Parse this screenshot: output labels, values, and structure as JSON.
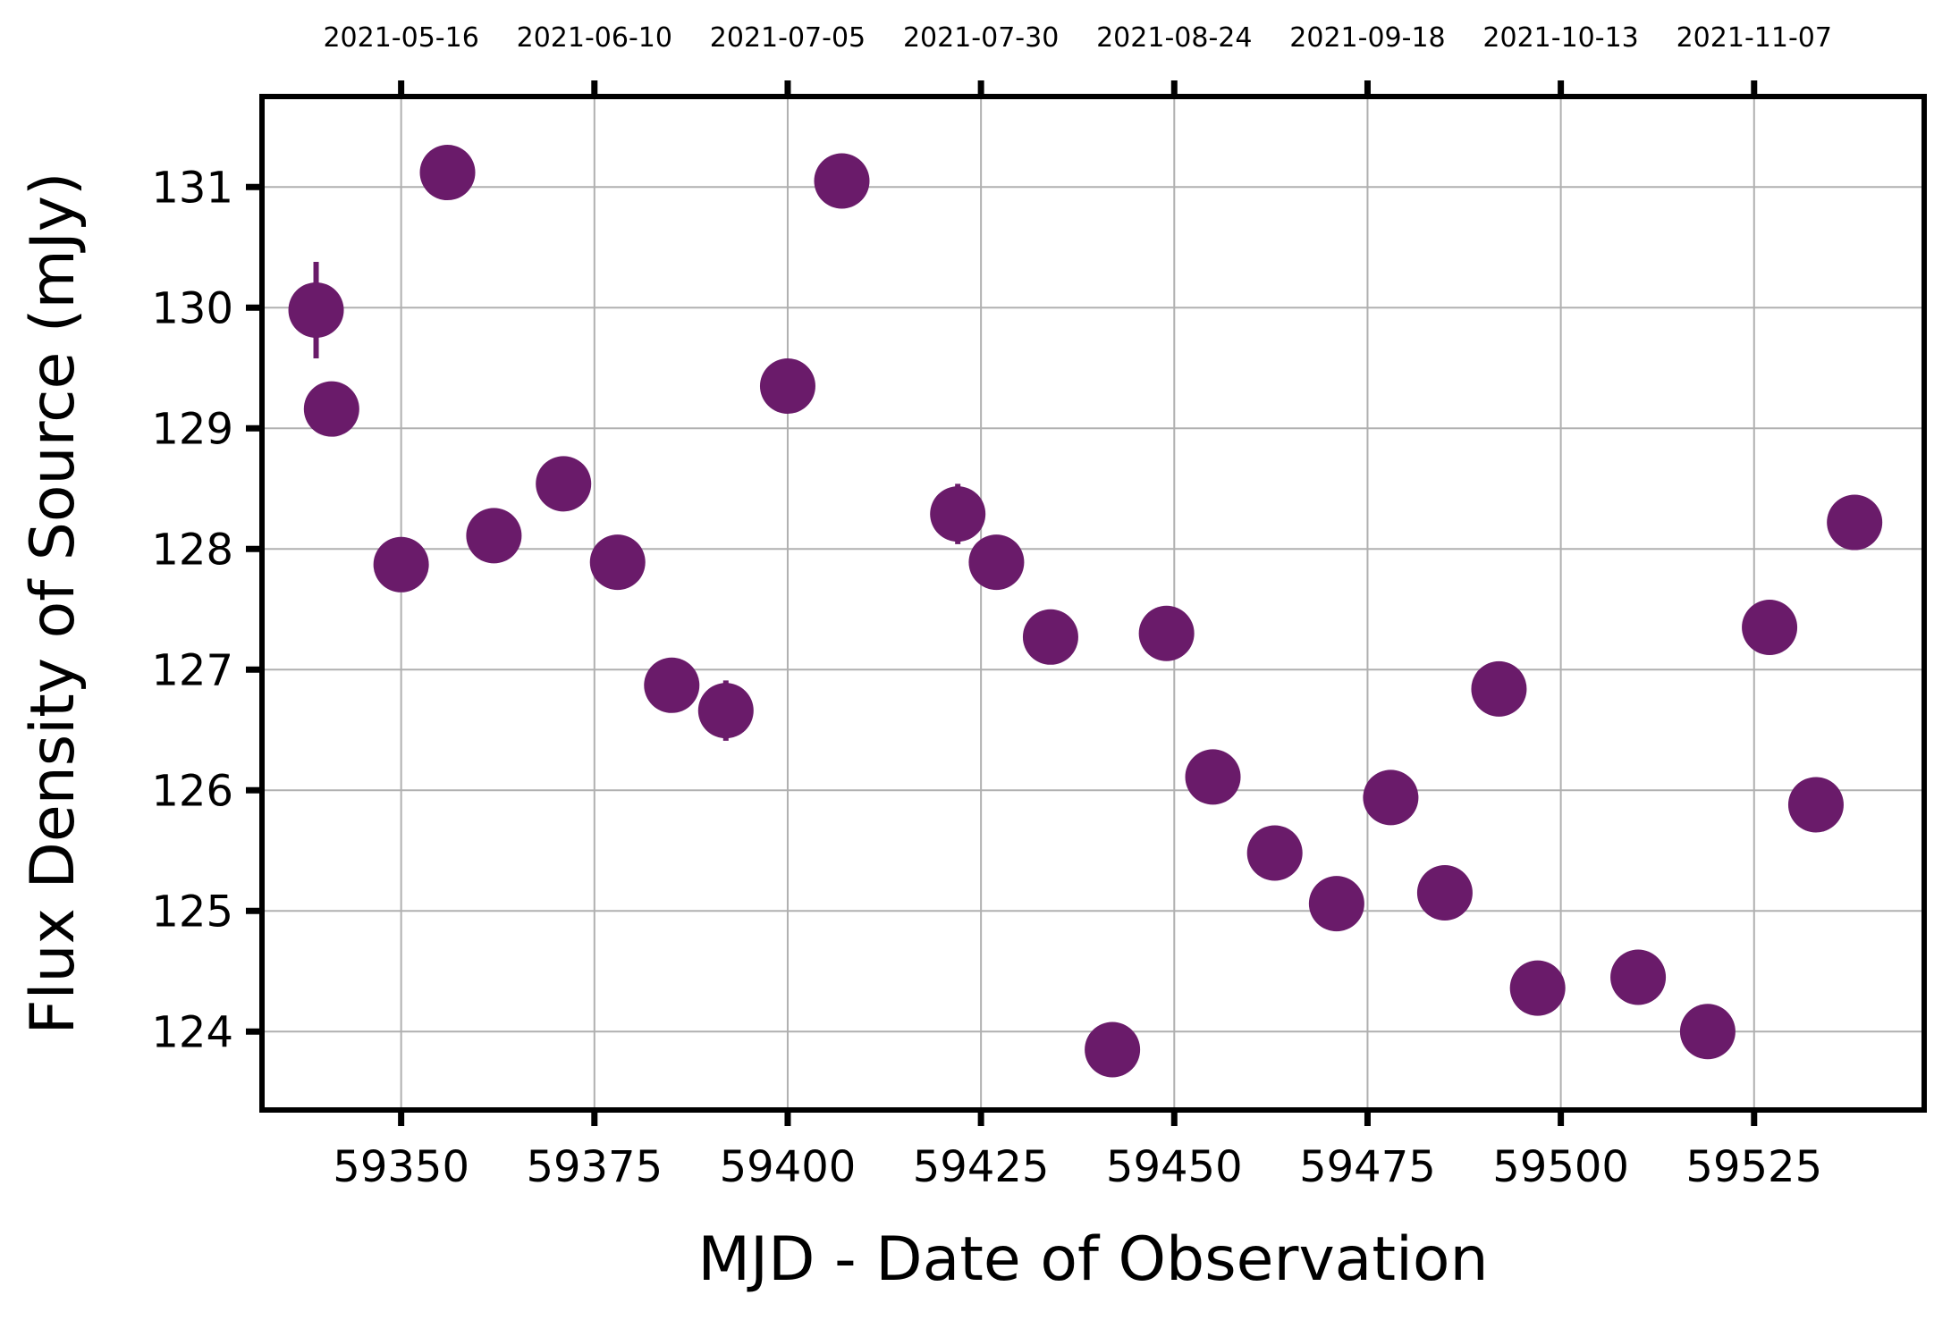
{
  "chart_data": {
    "type": "scatter",
    "title": "",
    "xlabel": "MJD - Date of Observation",
    "ylabel": "Flux Density of Source (mJy)",
    "xlim": [
      59332,
      59547
    ],
    "ylim": [
      123.35,
      131.75
    ],
    "x_ticks": [
      59350,
      59375,
      59400,
      59425,
      59450,
      59475,
      59500,
      59525
    ],
    "y_ticks": [
      124,
      125,
      126,
      127,
      128,
      129,
      130,
      131
    ],
    "top_axis": {
      "ticks": [
        59350,
        59375,
        59400,
        59425,
        59450,
        59475,
        59500,
        59525
      ],
      "labels": [
        "2021-05-16",
        "2021-06-10",
        "2021-07-05",
        "2021-07-30",
        "2021-08-24",
        "2021-09-18",
        "2021-10-13",
        "2021-11-07"
      ]
    },
    "grid": true,
    "marker_color": "#6a1b6a",
    "points": [
      {
        "x": 59339,
        "y": 129.98,
        "err": 0.4
      },
      {
        "x": 59341,
        "y": 129.16,
        "err": 0.0
      },
      {
        "x": 59350,
        "y": 127.87,
        "err": 0.2
      },
      {
        "x": 59356,
        "y": 131.12,
        "err": 0.0
      },
      {
        "x": 59362,
        "y": 128.11,
        "err": 0.0
      },
      {
        "x": 59371,
        "y": 128.54,
        "err": 0.0
      },
      {
        "x": 59378,
        "y": 127.89,
        "err": 0.0
      },
      {
        "x": 59385,
        "y": 126.87,
        "err": 0.0
      },
      {
        "x": 59392,
        "y": 126.66,
        "err": 0.25
      },
      {
        "x": 59400,
        "y": 129.35,
        "err": 0.0
      },
      {
        "x": 59407,
        "y": 131.05,
        "err": 0.0
      },
      {
        "x": 59422,
        "y": 128.29,
        "err": 0.25
      },
      {
        "x": 59427,
        "y": 127.89,
        "err": 0.0
      },
      {
        "x": 59434,
        "y": 127.27,
        "err": 0.0
      },
      {
        "x": 59442,
        "y": 123.85,
        "err": 0.0
      },
      {
        "x": 59449,
        "y": 127.3,
        "err": 0.0
      },
      {
        "x": 59455,
        "y": 126.11,
        "err": 0.0
      },
      {
        "x": 59463,
        "y": 125.48,
        "err": 0.0
      },
      {
        "x": 59471,
        "y": 125.06,
        "err": 0.0
      },
      {
        "x": 59478,
        "y": 125.94,
        "err": 0.0
      },
      {
        "x": 59485,
        "y": 125.15,
        "err": 0.0
      },
      {
        "x": 59492,
        "y": 126.84,
        "err": 0.0
      },
      {
        "x": 59497,
        "y": 124.36,
        "err": 0.0
      },
      {
        "x": 59510,
        "y": 124.45,
        "err": 0.0
      },
      {
        "x": 59519,
        "y": 124.0,
        "err": 0.0
      },
      {
        "x": 59527,
        "y": 127.35,
        "err": 0.0
      },
      {
        "x": 59533,
        "y": 125.88,
        "err": 0.0
      },
      {
        "x": 59538,
        "y": 128.22,
        "err": 0.0
      }
    ]
  }
}
